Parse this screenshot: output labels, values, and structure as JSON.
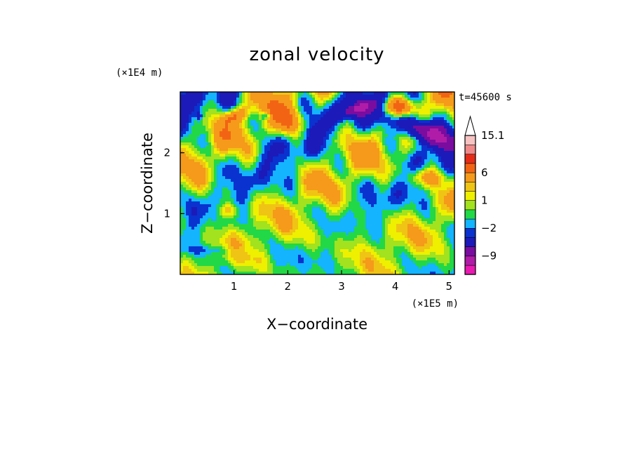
{
  "chart_data": {
    "type": "heatmap",
    "title": "zonal velocity",
    "xlabel": "X−coordinate",
    "ylabel": "Z−coordinate",
    "x_scale_note": "(×1E5 m)",
    "y_scale_note": "(×1E4 m)",
    "time_label": "t=45600 s",
    "xlim": [
      0,
      5.1
    ],
    "ylim": [
      0,
      3.0
    ],
    "x_ticks": [
      1,
      2,
      3,
      4,
      5
    ],
    "y_ticks": [
      1,
      2
    ],
    "grid": false,
    "colorbar": {
      "placement": "right",
      "levels": [
        -15,
        -12,
        -9,
        -6,
        -3,
        -2,
        -1,
        0,
        1,
        2,
        3,
        6,
        9,
        12,
        15.1
      ],
      "colors": [
        "#e81ab2",
        "#b01ca8",
        "#7a0ca0",
        "#1c1ab8",
        "#0a32cf",
        "#14b4ff",
        "#22d846",
        "#a2e21e",
        "#eef000",
        "#f0c414",
        "#f59a1a",
        "#f26414",
        "#e62c18",
        "#f08a8a",
        "#f6c2c2"
      ],
      "extend_top_color": "#ffffff",
      "tick_labels": [
        {
          "label": "15.1",
          "value": 15.1
        },
        {
          "label": "6",
          "value": 6
        },
        {
          "label": "1",
          "value": 1
        },
        {
          "label": "−2",
          "value": -2
        },
        {
          "label": "−9",
          "value": -9
        }
      ]
    },
    "features": [
      {
        "comment_free": true,
        "x": 4.45,
        "z": 2.38,
        "value": -12,
        "rx": 0.72,
        "rz": 0.19,
        "tilt": -0.35
      },
      {
        "x": 3.3,
        "z": 2.72,
        "value": -6,
        "rx": 0.38,
        "rz": 0.1,
        "tilt": 0.3
      },
      {
        "x": 0.35,
        "z": 2.6,
        "value": -4,
        "rx": 0.06,
        "rz": 0.07,
        "tilt": 0
      },
      {
        "x": 1.6,
        "z": 2.6,
        "value": -5,
        "rx": 0.08,
        "rz": 0.06,
        "tilt": 0
      },
      {
        "x": 1.0,
        "z": 2.6,
        "value": 5,
        "rx": 0.25,
        "rz": 0.1,
        "tilt": 0.3
      },
      {
        "x": 2.0,
        "z": 2.5,
        "value": 7,
        "rx": 0.2,
        "rz": 0.22,
        "tilt": 0
      },
      {
        "x": 4.1,
        "z": 2.75,
        "value": 6,
        "rx": 0.25,
        "rz": 0.13,
        "tilt": 0
      },
      {
        "x": 4.6,
        "z": 1.6,
        "value": 5,
        "rx": 0.35,
        "rz": 0.15,
        "tilt": 0
      },
      {
        "x": 0.9,
        "z": 1.05,
        "value": 4,
        "rx": 0.2,
        "rz": 0.12,
        "tilt": 0
      },
      {
        "x": 3.0,
        "z": 0.6,
        "value": 1,
        "rx": 0.9,
        "rz": 0.3,
        "tilt": 0
      },
      {
        "x": 0.6,
        "z": 0.4,
        "value": -1.5,
        "rx": 0.7,
        "rz": 0.08,
        "tilt": 0
      }
    ]
  }
}
